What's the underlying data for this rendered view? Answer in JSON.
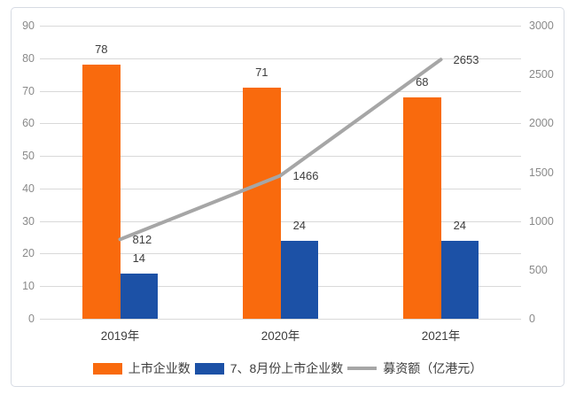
{
  "chart_data": {
    "type": "combo-bar-line",
    "categories": [
      "2019年",
      "2020年",
      "2021年"
    ],
    "series": [
      {
        "name": "上市企业数",
        "type": "bar",
        "axis": "left",
        "color": "#f96a0d",
        "values": [
          78,
          71,
          68
        ]
      },
      {
        "name": "7、8月份上市企业数",
        "type": "bar",
        "axis": "left",
        "color": "#1c51a6",
        "values": [
          14,
          24,
          24
        ]
      },
      {
        "name": "募资额（亿港元）",
        "type": "line",
        "axis": "right",
        "color": "#a6a6a6",
        "values": [
          812,
          1466,
          2653
        ]
      }
    ],
    "left_axis": {
      "min": 0,
      "max": 90,
      "step": 10,
      "tick_labels": [
        "0",
        "10",
        "20",
        "30",
        "40",
        "50",
        "60",
        "70",
        "80",
        "90"
      ]
    },
    "right_axis": {
      "min": 0,
      "max": 3000,
      "step": 500,
      "tick_labels": [
        "0",
        "500",
        "1000",
        "1500",
        "2000",
        "2500",
        "3000"
      ]
    },
    "grid": true,
    "legend_position": "bottom",
    "data_labels_shown": true
  },
  "appearance": {
    "gridline_color": "#d9d9d9",
    "axis_text_color": "#8a8a8a",
    "label_text_color": "#3d3d3d",
    "card_border_color": "#d6dbe3",
    "background_color": "#ffffff"
  }
}
